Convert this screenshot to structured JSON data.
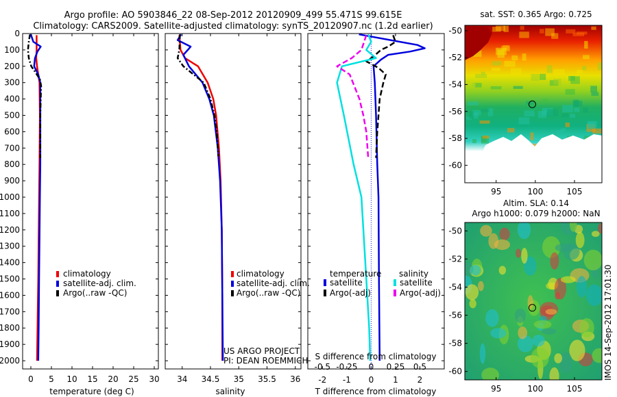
{
  "title_line1": "Argo profile: AO 5903846_22 08-Sep-2012 20120909_499 55.471S 99.615E",
  "title_line2": "Climatology: CARS2009. Satellite-adjusted climatology: synTS_20120907.nc (1.2d earlier)",
  "sidebar_text": "IMOS 14-Sep-2012 17:01:30",
  "colors": {
    "climatology": "#ee0000",
    "satellite": "#0000dd",
    "argo": "#000000",
    "satellite_s": "#00e0e0",
    "argo_s": "#ee00ee"
  },
  "chart_data": [
    {
      "type": "line",
      "name": "temperature-panel",
      "xlabel": "temperature (deg C)",
      "ylabel": "",
      "xlim": [
        -2,
        31
      ],
      "ylim": [
        2050,
        0
      ],
      "xticks": [
        "0",
        "5",
        "10",
        "15",
        "20",
        "25",
        "30"
      ],
      "xtick_values": [
        0,
        5,
        10,
        15,
        20,
        25,
        30
      ],
      "yticks": [
        "0",
        "100",
        "200",
        "300",
        "400",
        "500",
        "600",
        "700",
        "800",
        "900",
        "1000",
        "1100",
        "1200",
        "1300",
        "1400",
        "1500",
        "1600",
        "1700",
        "1800",
        "1900",
        "2000"
      ],
      "ytick_values": [
        0,
        100,
        200,
        300,
        400,
        500,
        600,
        700,
        800,
        900,
        1000,
        1100,
        1200,
        1300,
        1400,
        1500,
        1600,
        1700,
        1800,
        1900,
        2000
      ],
      "legend": [
        "climatology",
        "satellite-adj. clim.",
        "Argo(..raw -QC)"
      ],
      "series": [
        {
          "name": "climatology",
          "pressure": [
            10,
            100,
            150,
            200,
            300,
            500,
            800,
            1000,
            1500,
            2000
          ],
          "values": [
            1.4,
            1.4,
            1.3,
            1.5,
            2.1,
            2.2,
            2.1,
            2.0,
            1.8,
            1.5
          ]
        },
        {
          "name": "satellite-adj. clim.",
          "pressure": [
            5,
            50,
            80,
            110,
            150,
            200,
            250,
            300,
            500,
            800,
            1000,
            1500,
            1800,
            2000
          ],
          "values": [
            0.0,
            0.6,
            2.4,
            1.6,
            1.0,
            0.8,
            1.8,
            2.3,
            2.3,
            2.3,
            2.2,
            2.0,
            1.9,
            1.8
          ]
        },
        {
          "name": "Argo(..raw -QC)",
          "pressure": [
            5,
            50,
            100,
            150,
            200,
            240,
            280,
            320,
            400,
            500,
            600,
            760
          ],
          "values": [
            -0.2,
            -0.5,
            -0.7,
            -0.5,
            0.1,
            1.2,
            2.2,
            2.5,
            2.4,
            2.3,
            2.3,
            2.3
          ]
        }
      ]
    },
    {
      "type": "line",
      "name": "salinity-panel",
      "xlabel": "salinity",
      "ylabel": "",
      "xlim": [
        33.7,
        36.1
      ],
      "ylim": [
        2050,
        0
      ],
      "xticks": [
        "34",
        "34.5",
        "35",
        "35.5",
        "36"
      ],
      "xtick_values": [
        34,
        34.5,
        35,
        35.5,
        36
      ],
      "legend": [
        "climatology",
        "satellite-adj. clim.",
        "Argo(..raw -QC)"
      ],
      "annotations": [
        "US ARGO PROJECT",
        "PI: DEAN ROEMMICH"
      ],
      "series": [
        {
          "name": "climatology",
          "pressure": [
            10,
            100,
            150,
            200,
            300,
            400,
            500,
            700,
            900,
            1200,
            1600,
            2000
          ],
          "values": [
            33.95,
            33.97,
            34.05,
            34.28,
            34.45,
            34.55,
            34.6,
            34.65,
            34.68,
            34.7,
            34.71,
            34.71
          ]
        },
        {
          "name": "satellite-adj. clim.",
          "pressure": [
            5,
            40,
            80,
            100,
            130,
            200,
            300,
            400,
            500,
            700,
            900,
            1200,
            1600,
            2000
          ],
          "values": [
            33.98,
            33.92,
            34.15,
            34.1,
            34.02,
            34.12,
            34.36,
            34.48,
            34.56,
            34.63,
            34.67,
            34.7,
            34.71,
            34.72
          ]
        },
        {
          "name": "Argo(..raw -QC)",
          "pressure": [
            5,
            100,
            150,
            200,
            250,
            300,
            400,
            500,
            600,
            700,
            750
          ],
          "values": [
            33.96,
            33.95,
            33.92,
            34.02,
            34.2,
            34.38,
            34.5,
            34.57,
            34.61,
            34.63,
            34.64
          ]
        }
      ]
    },
    {
      "type": "line",
      "name": "difference-panel",
      "xlabel": "T difference from climatology",
      "xlabel_top": "S difference from climatology",
      "xlim": [
        -2.6,
        3.0
      ],
      "ylim": [
        2050,
        0
      ],
      "xticks": [
        "-2",
        "-1",
        "0",
        "1",
        "2"
      ],
      "xtick_values": [
        -2,
        -1,
        0,
        1,
        2
      ],
      "xticks_s": [
        "-0.5",
        "-0.25",
        "0",
        "0.25",
        "0.5"
      ],
      "xtick_values_s": [
        -0.5,
        -0.25,
        0,
        0.25,
        0.5
      ],
      "legend_titles": [
        "temperature",
        "salinity"
      ],
      "legend": [
        "satellite",
        "Argo(-adj)",
        "satellite",
        "Argo(-adj)"
      ],
      "series": [
        {
          "name": "T satellite",
          "pressure": [
            5,
            40,
            70,
            90,
            110,
            130,
            160,
            200,
            300,
            500,
            800,
            1000,
            1500,
            2000
          ],
          "values": [
            -0.5,
            0.8,
            1.9,
            2.2,
            1.6,
            0.7,
            0.4,
            0.1,
            0.15,
            0.2,
            0.25,
            0.3,
            0.32,
            0.35
          ]
        },
        {
          "name": "T Argo(-adj)",
          "pressure": [
            10,
            50,
            80,
            100,
            140,
            170,
            210,
            250,
            300,
            400,
            500,
            600,
            760
          ],
          "values": [
            0.9,
            1.0,
            0.7,
            0.4,
            0.1,
            -0.2,
            0.3,
            0.6,
            0.5,
            0.35,
            0.3,
            0.25,
            0.2
          ]
        },
        {
          "name": "S satellite",
          "pressure": [
            5,
            50,
            100,
            150,
            200,
            300,
            500,
            800,
            1000,
            1500,
            1800,
            2000
          ],
          "values": [
            -0.03,
            0.0,
            -0.05,
            0.05,
            -0.3,
            -0.35,
            -0.28,
            -0.18,
            -0.1,
            -0.05,
            -0.02,
            -0.01
          ]
        },
        {
          "name": "S Argo(-adj)",
          "pressure": [
            10,
            100,
            150,
            200,
            250,
            400,
            500,
            600,
            760
          ],
          "values": [
            -0.05,
            -0.1,
            -0.2,
            -0.35,
            -0.22,
            -0.12,
            -0.08,
            -0.05,
            -0.03
          ]
        }
      ]
    },
    {
      "type": "heatmap",
      "name": "sst-map",
      "title": "sat. SST: 0.365 Argo: 0.725",
      "xticks": [
        "95",
        "100",
        "105"
      ],
      "xtick_values": [
        95,
        100,
        105
      ],
      "yticks": [
        "-50",
        "-52",
        "-54",
        "-56",
        "-58",
        "-60"
      ],
      "ytick_values": [
        -50,
        -52,
        -54,
        -56,
        -58,
        -60
      ],
      "xlim": [
        91,
        108.5
      ],
      "ylim": [
        -61.3,
        -49.6
      ],
      "marker": {
        "lon": 99.615,
        "lat": -55.471
      }
    },
    {
      "type": "heatmap",
      "name": "sla-map",
      "title": "Altim. SLA: 0.14",
      "subtitle": "Argo h1000: 0.079 h2000: NaN",
      "xticks": [
        "95",
        "100",
        "105"
      ],
      "xtick_values": [
        95,
        100,
        105
      ],
      "yticks": [
        "-50",
        "-52",
        "-54",
        "-56",
        "-58",
        "-60"
      ],
      "ytick_values": [
        -50,
        -52,
        -54,
        -56,
        -58,
        -60
      ],
      "xlim": [
        91,
        108.5
      ],
      "ylim": [
        -60.6,
        -49.4
      ],
      "marker": {
        "lon": 99.615,
        "lat": -55.471
      }
    }
  ]
}
